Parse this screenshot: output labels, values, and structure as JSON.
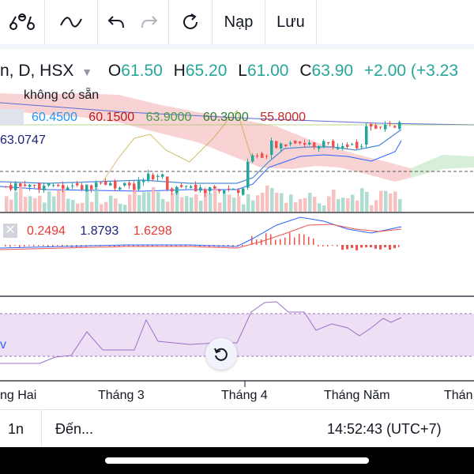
{
  "toolbar": {
    "buttons": [
      {
        "name": "indicators-icon"
      },
      {
        "name": "line-tool-icon"
      },
      {
        "name": "undo-icon"
      },
      {
        "name": "redo-icon"
      },
      {
        "name": "reload-icon"
      }
    ],
    "nap_label": "Nạp",
    "luu_label": "Lưu"
  },
  "legend": {
    "symbol_suffix": "n, D, HSX",
    "open_label": "O",
    "open": "61.50",
    "high_label": "H",
    "high": "65.20",
    "low_label": "L",
    "low": "61.00",
    "close_label": "C",
    "close": "63.90",
    "change": "+2.00 (+3.23",
    "unavailable": "không có sẵn"
  },
  "ichimoku": {
    "values": [
      "60.4500",
      "60.1500",
      "63.9000",
      "60.3000",
      "55.8000"
    ],
    "colors": [
      "#2196f3",
      "#b71c1c",
      "#43a047",
      "#2e7d32",
      "#c62828"
    ],
    "bb_value": "63.0747"
  },
  "macd": {
    "values": [
      "0.2494",
      "1.8793",
      "1.6298"
    ],
    "colors": [
      "#e53935",
      "#1a237e",
      "#e53935"
    ]
  },
  "xaxis": {
    "labels": [
      "ng Hai",
      "Tháng 3",
      "Tháng 4",
      "Tháng Năm",
      "Thán"
    ]
  },
  "bottom": {
    "interval": "1n",
    "goto": "Đến...",
    "time": "14:52:43 (UTC+7)"
  },
  "colors": {
    "up": "#26a69a",
    "down": "#ef5350",
    "cloud_bear": "#f8c8c8",
    "cloud_bull": "#d7efd9",
    "rsi_band": "#ede0f5",
    "rsi_line": "#9c6fc8"
  }
}
